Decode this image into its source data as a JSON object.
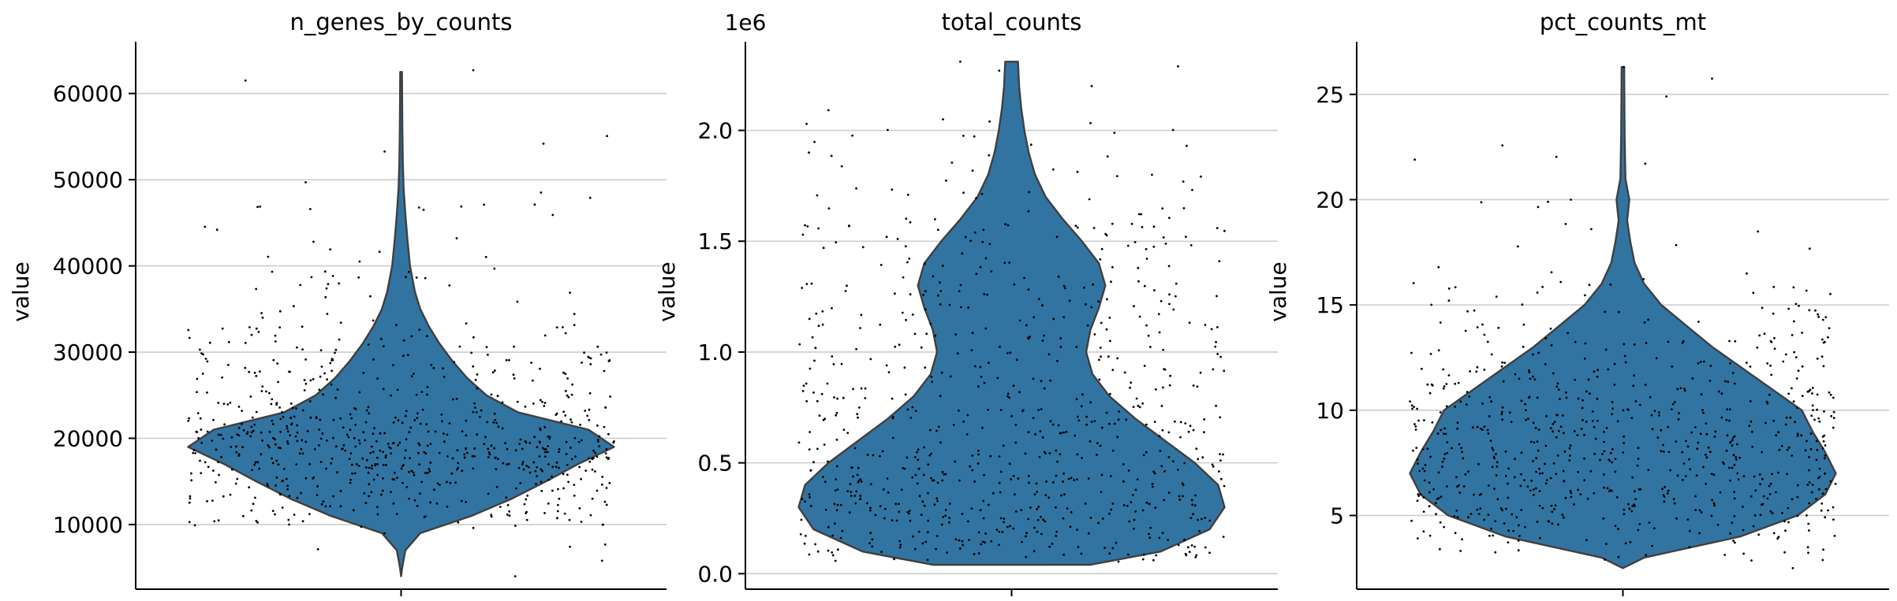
{
  "chart_data": [
    {
      "type": "violin",
      "title": "n_genes_by_counts",
      "xlabel": "",
      "ylabel": "value",
      "ylim": [
        2500,
        66000
      ],
      "yticks": [
        10000,
        20000,
        30000,
        40000,
        50000,
        60000
      ],
      "ytick_labels": [
        "10000",
        "20000",
        "30000",
        "40000",
        "50000",
        "60000"
      ],
      "grid": "horizontal",
      "fill_color": "#3274a1",
      "violin_min": 4000,
      "violin_max": 62500,
      "density_profile": [
        [
          4000,
          0.0
        ],
        [
          5000,
          0.005
        ],
        [
          7000,
          0.02
        ],
        [
          9000,
          0.09
        ],
        [
          11000,
          0.33
        ],
        [
          13000,
          0.52
        ],
        [
          15000,
          0.68
        ],
        [
          17000,
          0.83
        ],
        [
          19000,
          1.0
        ],
        [
          21000,
          0.88
        ],
        [
          23000,
          0.55
        ],
        [
          25000,
          0.4
        ],
        [
          27000,
          0.31
        ],
        [
          29000,
          0.24
        ],
        [
          31000,
          0.18
        ],
        [
          33000,
          0.13
        ],
        [
          35000,
          0.09
        ],
        [
          37000,
          0.065
        ],
        [
          40000,
          0.042
        ],
        [
          43000,
          0.03
        ],
        [
          46000,
          0.02
        ],
        [
          49000,
          0.012
        ],
        [
          52000,
          0.008
        ],
        [
          56000,
          0.006
        ],
        [
          62500,
          0.004
        ]
      ],
      "points_count": 750,
      "outliers": [
        61500,
        62700,
        48500,
        47900,
        46500,
        44200,
        43200,
        42800,
        4000,
        5800
      ]
    },
    {
      "type": "violin",
      "title": "total_counts",
      "xlabel": "",
      "ylabel": "value",
      "offset_label": "1e6",
      "ylim": [
        -0.07,
        2.4
      ],
      "yticks": [
        0.0,
        0.5,
        1.0,
        1.5,
        2.0
      ],
      "ytick_labels": [
        "0.0",
        "0.5",
        "1.0",
        "1.5",
        "2.0"
      ],
      "grid": "horizontal",
      "fill_color": "#3274a1",
      "violin_min": 0.04,
      "violin_max": 2.31,
      "density_profile": [
        [
          0.04,
          0.37
        ],
        [
          0.1,
          0.7
        ],
        [
          0.2,
          0.93
        ],
        [
          0.3,
          1.0
        ],
        [
          0.4,
          0.97
        ],
        [
          0.5,
          0.86
        ],
        [
          0.6,
          0.72
        ],
        [
          0.7,
          0.58
        ],
        [
          0.8,
          0.46
        ],
        [
          0.9,
          0.38
        ],
        [
          1.0,
          0.35
        ],
        [
          1.1,
          0.37
        ],
        [
          1.2,
          0.41
        ],
        [
          1.3,
          0.44
        ],
        [
          1.4,
          0.41
        ],
        [
          1.5,
          0.33
        ],
        [
          1.6,
          0.24
        ],
        [
          1.7,
          0.16
        ],
        [
          1.8,
          0.11
        ],
        [
          1.9,
          0.08
        ],
        [
          2.0,
          0.06
        ],
        [
          2.1,
          0.045
        ],
        [
          2.2,
          0.035
        ],
        [
          2.31,
          0.03
        ]
      ],
      "points_count": 750,
      "outliers": [
        2.31,
        2.27,
        2.2,
        2.05,
        2.04,
        1.9,
        1.93
      ]
    },
    {
      "type": "violin",
      "title": "pct_counts_mt",
      "xlabel": "",
      "ylabel": "value",
      "ylim": [
        1.5,
        27.5
      ],
      "yticks": [
        5,
        10,
        15,
        20,
        25
      ],
      "ytick_labels": [
        "5",
        "10",
        "15",
        "20",
        "25"
      ],
      "grid": "horizontal",
      "fill_color": "#3274a1",
      "violin_min": 2.5,
      "violin_max": 26.3,
      "density_profile": [
        [
          2.5,
          0.0
        ],
        [
          3.0,
          0.1
        ],
        [
          4.0,
          0.55
        ],
        [
          5.0,
          0.82
        ],
        [
          6.0,
          0.95
        ],
        [
          7.0,
          1.0
        ],
        [
          8.0,
          0.95
        ],
        [
          9.0,
          0.89
        ],
        [
          10.0,
          0.84
        ],
        [
          11.0,
          0.7
        ],
        [
          12.0,
          0.56
        ],
        [
          13.0,
          0.42
        ],
        [
          14.0,
          0.3
        ],
        [
          15.0,
          0.18
        ],
        [
          16.0,
          0.1
        ],
        [
          17.0,
          0.055
        ],
        [
          18.0,
          0.035
        ],
        [
          19.0,
          0.02
        ],
        [
          20.0,
          0.03
        ],
        [
          21.0,
          0.012
        ],
        [
          23.0,
          0.008
        ],
        [
          26.3,
          0.006
        ]
      ],
      "points_count": 750,
      "outliers": [
        26.3,
        20.0,
        19.9,
        18.6,
        2.5,
        3.5
      ]
    }
  ]
}
